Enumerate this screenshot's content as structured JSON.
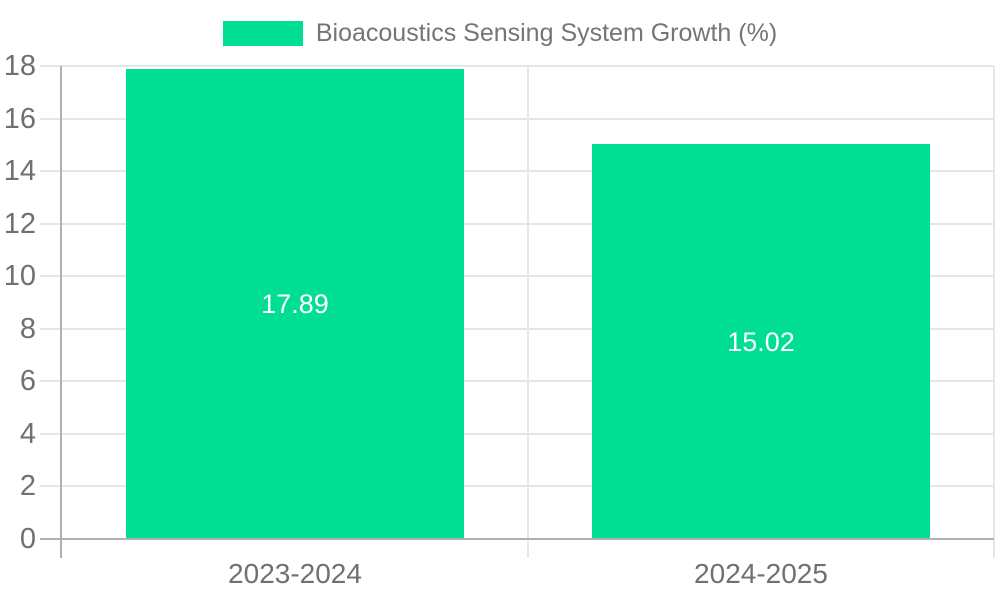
{
  "chart_data": {
    "type": "bar",
    "title": "",
    "legend": {
      "label": "Bioacoustics Sensing System Growth (%)",
      "position": "top-center"
    },
    "categories": [
      "2023-2024",
      "2024-2025"
    ],
    "series": [
      {
        "name": "Bioacoustics Sensing System Growth (%)",
        "values": [
          17.89,
          15.02
        ]
      }
    ],
    "data_labels": [
      "17.89",
      "15.02"
    ],
    "xlabel": "",
    "ylabel": "",
    "ylim": [
      0,
      18
    ],
    "ytick_step": 2,
    "ytick_labels": [
      "0",
      "2",
      "4",
      "6",
      "8",
      "10",
      "12",
      "14",
      "16",
      "18"
    ],
    "grid": true,
    "colors": {
      "bar": "#00DE94",
      "gridline": "#e6e6e6",
      "axis_line": "#b0b0b0",
      "tick_label": "#707070",
      "legend_text": "#757575",
      "data_label": "#ffffff",
      "background": "#ffffff"
    }
  }
}
